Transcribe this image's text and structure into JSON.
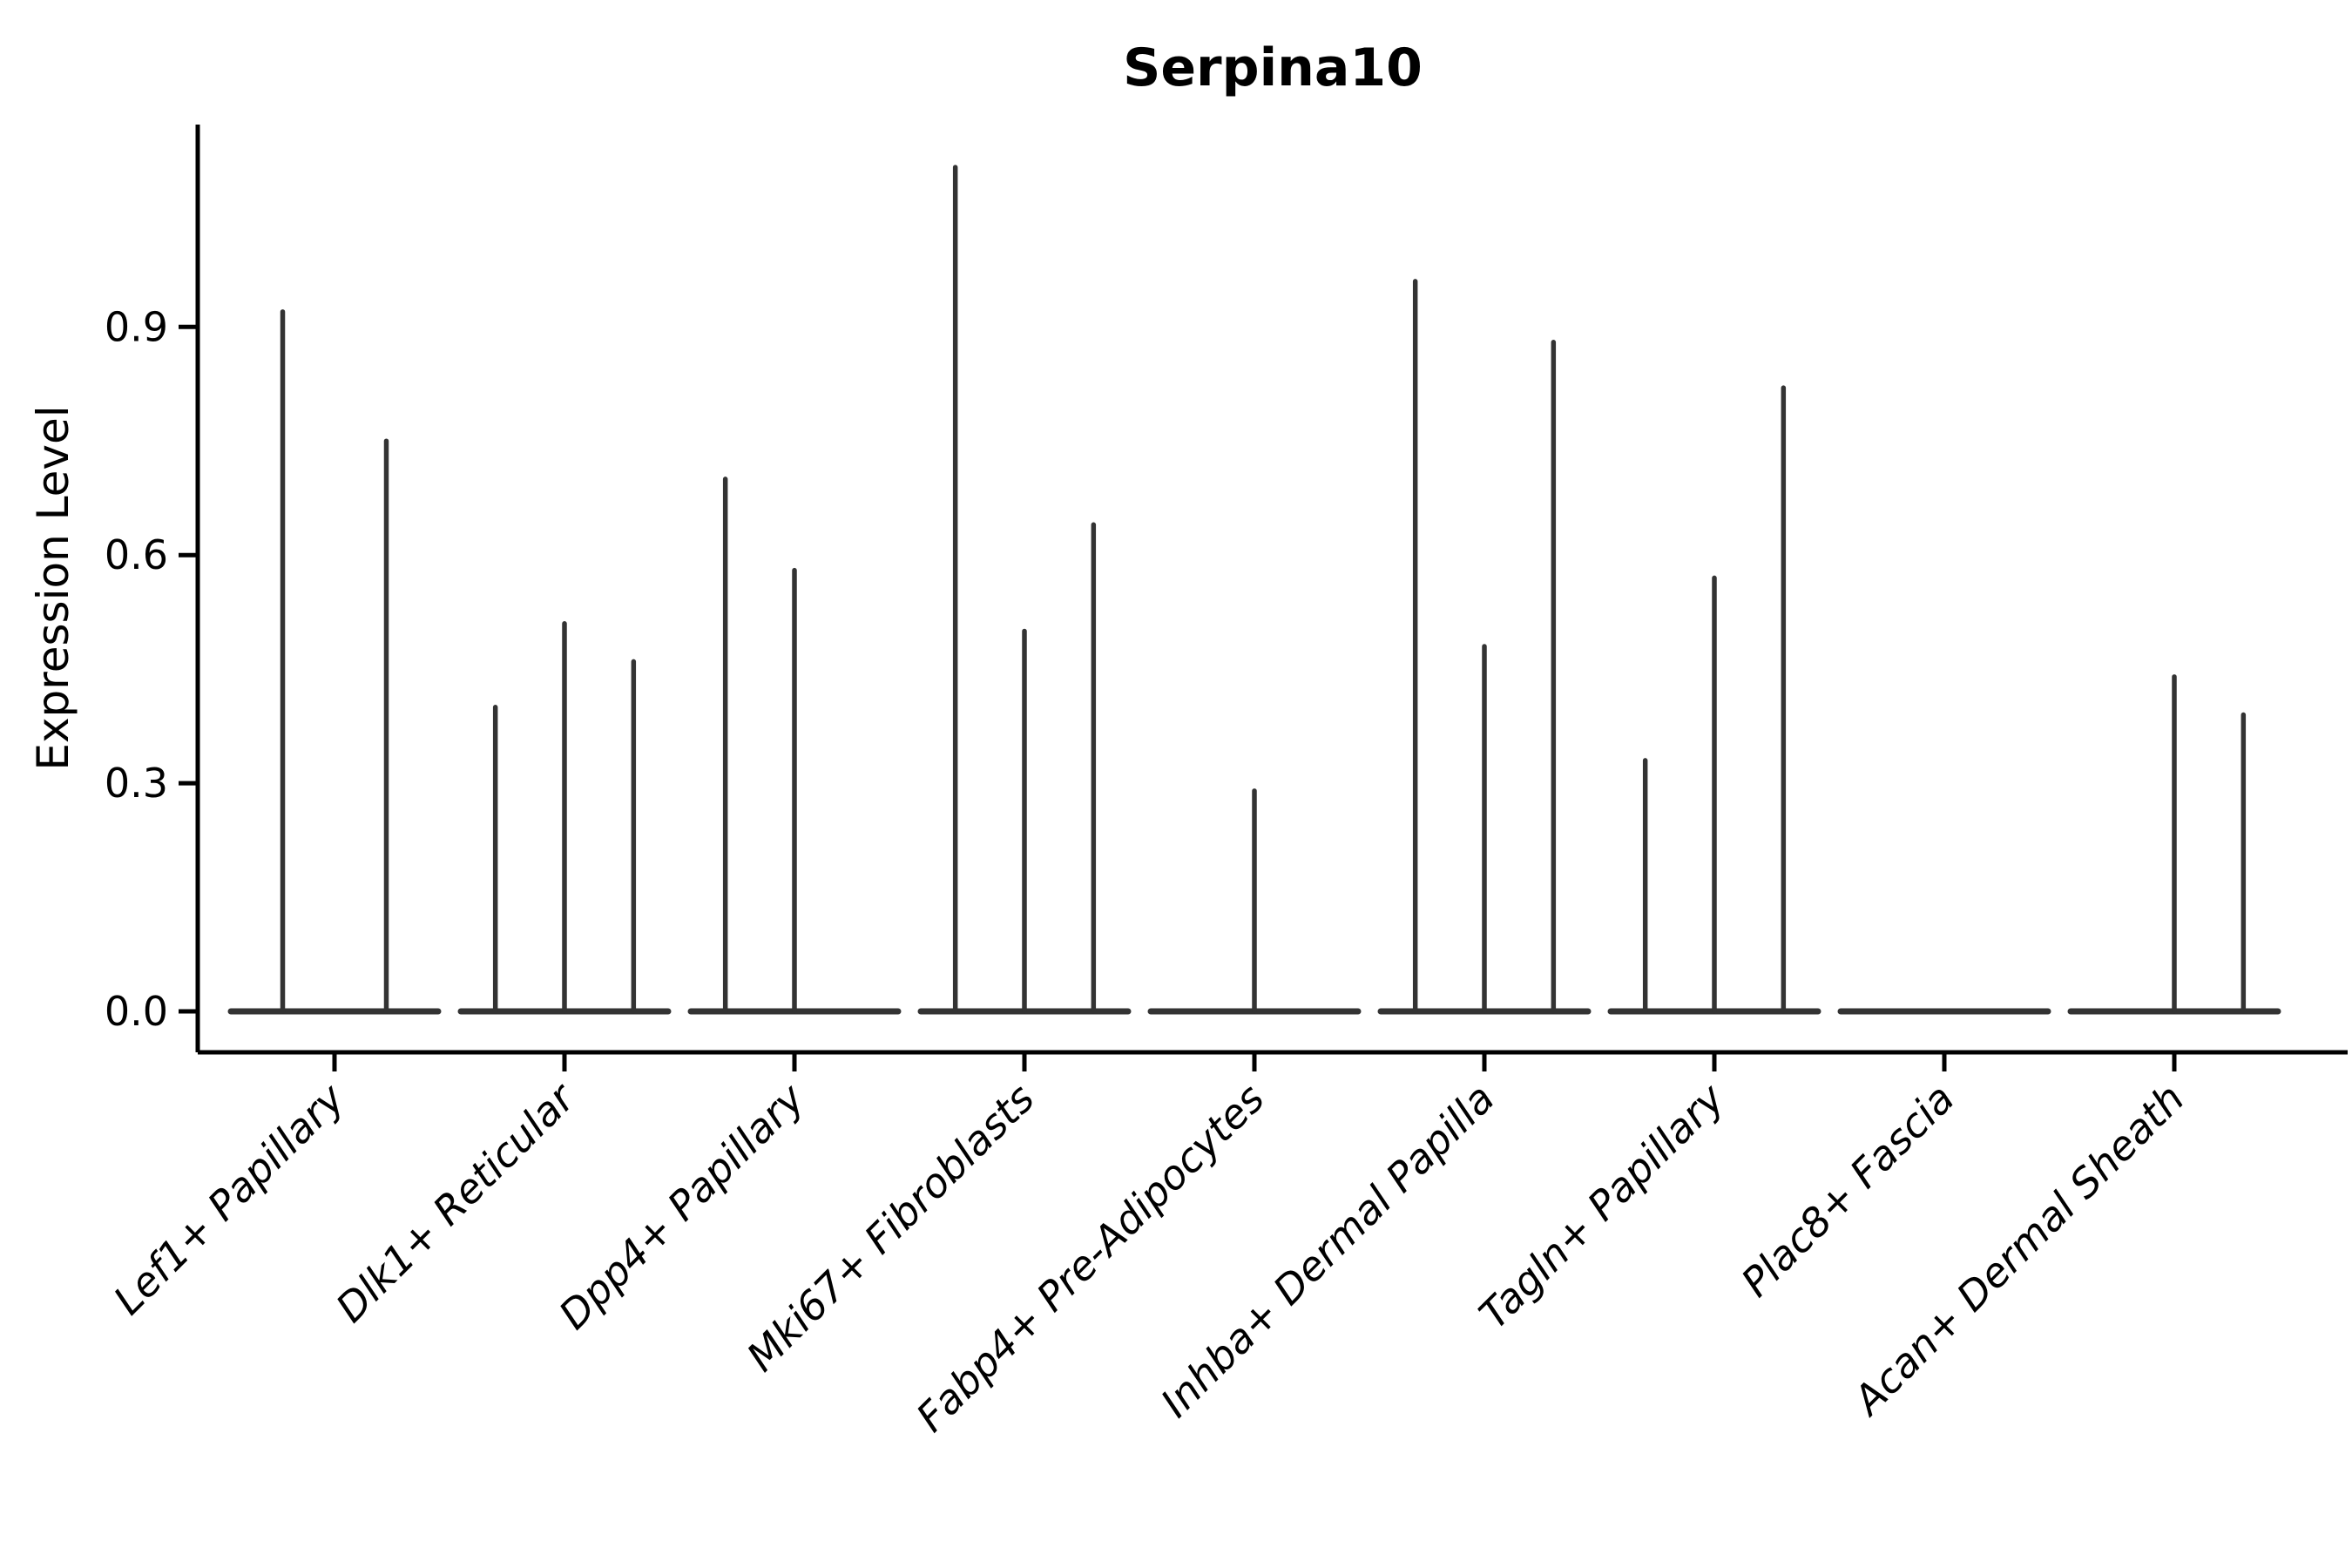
{
  "figure": {
    "title": "Serpina10",
    "background": "#ffffff"
  },
  "chart_data": {
    "type": "violin",
    "title": "Serpina10",
    "subtitle": "",
    "xlabel": "",
    "ylabel": "Expression Level",
    "ylim": [
      -0.055,
      1.17
    ],
    "grid": false,
    "legend": "none",
    "yticks": [
      {
        "value": 0.0,
        "label": "0.0"
      },
      {
        "value": 0.3,
        "label": "0.3"
      },
      {
        "value": 0.6,
        "label": "0.6"
      },
      {
        "value": 0.9,
        "label": "0.9"
      }
    ],
    "colors": {
      "violin_stroke": "#333333",
      "axis": "#000000",
      "text": "#000000",
      "background": "#ffffff"
    },
    "description": "Sparse violin plot of Serpina10 expression; each cell-type category shows flat collapsed violins at 0 with thin spikes reaching the max expression value per sample group.",
    "categories": [
      {
        "label": "Lef1+ Papillary",
        "violins": [
          {
            "pos": 0.25,
            "max": 0.92
          },
          {
            "pos": 0.75,
            "max": 0.75
          }
        ]
      },
      {
        "label": "Dlk1+ Reticular",
        "violins": [
          {
            "pos": 0.1667,
            "max": 0.4
          },
          {
            "pos": 0.5,
            "max": 0.51
          },
          {
            "pos": 0.8333,
            "max": 0.46
          }
        ]
      },
      {
        "label": "Dpp4+ Papillary",
        "violins": [
          {
            "pos": 0.1667,
            "max": 0.7
          },
          {
            "pos": 0.5,
            "max": 0.58
          },
          {
            "pos": 0.8333,
            "max": 0.0
          }
        ]
      },
      {
        "label": "Mki67+ Fibroblasts",
        "violins": [
          {
            "pos": 0.1667,
            "max": 1.11
          },
          {
            "pos": 0.5,
            "max": 0.5
          },
          {
            "pos": 0.8333,
            "max": 0.64
          }
        ]
      },
      {
        "label": "Fabp4+ Pre-Adipocytes",
        "violins": [
          {
            "pos": 0.5,
            "max": 0.29
          }
        ]
      },
      {
        "label": "Inhba+ Dermal Papilla",
        "violins": [
          {
            "pos": 0.1667,
            "max": 0.96
          },
          {
            "pos": 0.5,
            "max": 0.48
          },
          {
            "pos": 0.8333,
            "max": 0.88
          }
        ]
      },
      {
        "label": "Tagln+ Papillary",
        "violins": [
          {
            "pos": 0.1667,
            "max": 0.33
          },
          {
            "pos": 0.5,
            "max": 0.57
          },
          {
            "pos": 0.8333,
            "max": 0.82
          }
        ]
      },
      {
        "label": "Plac8+ Fascia",
        "violins": []
      },
      {
        "label": "Acan+ Dermal Sheath",
        "violins": [
          {
            "pos": 0.1667,
            "max": 0.0
          },
          {
            "pos": 0.5,
            "max": 0.44
          },
          {
            "pos": 0.8333,
            "max": 0.39
          }
        ]
      }
    ]
  }
}
